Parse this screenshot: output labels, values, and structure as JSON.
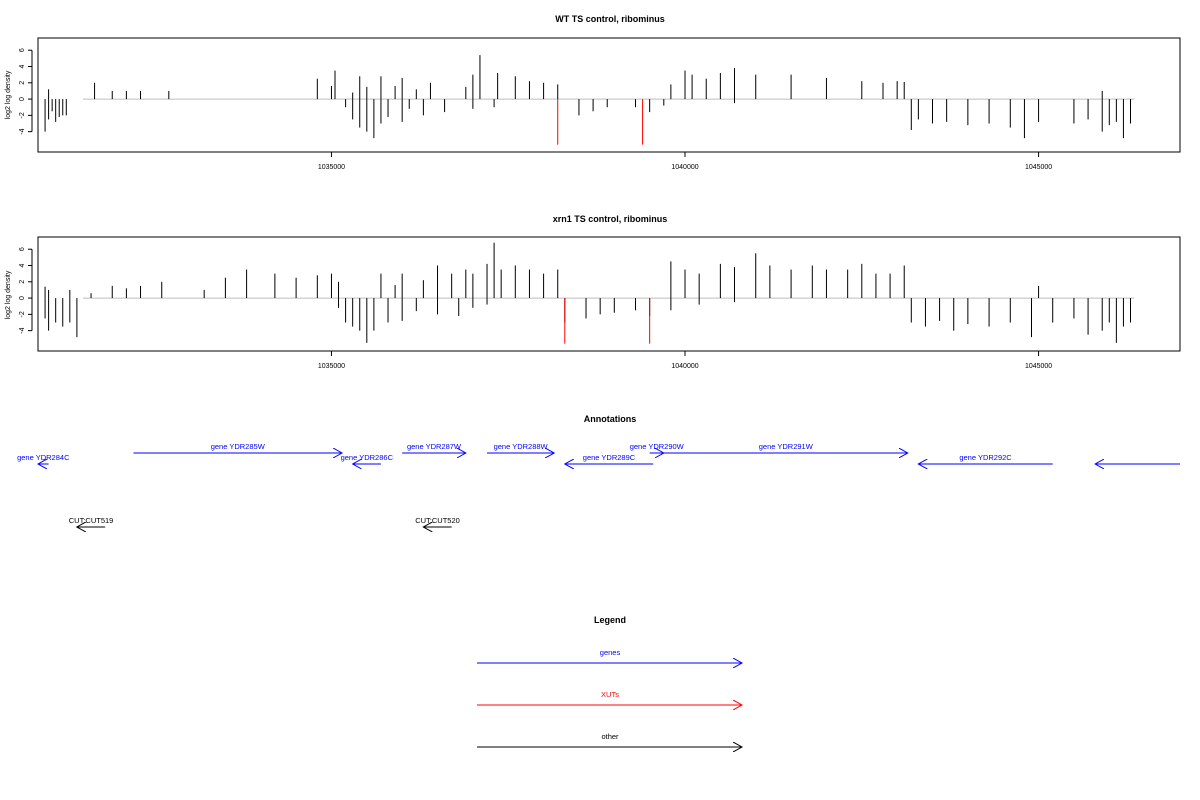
{
  "colors": {
    "gene": "#0000ff",
    "xut": "#ff0000",
    "other": "#000000",
    "bar": "#000000",
    "baseline": "#bebebe"
  },
  "chart_data": [
    {
      "type": "bar",
      "title": "WT TS control, ribominus",
      "ylabel": "log2 log density",
      "xlim": [
        1030850,
        1047000
      ],
      "ylim": [
        -6.5,
        7.5
      ],
      "xticks": [
        "1035000",
        "1040000",
        "1045000"
      ],
      "yticks": [
        "6",
        "4",
        "2",
        "0",
        "-2",
        "-4"
      ],
      "grid": false,
      "series": [
        {
          "strand": "plus",
          "x": [
            1031000,
            1031650,
            1031900,
            1032100,
            1032300,
            1032700,
            1034800,
            1035000,
            1035050,
            1035300,
            1035400,
            1035500,
            1035700,
            1035900,
            1036000,
            1036200,
            1036400,
            1036900,
            1037000,
            1037100,
            1037350,
            1037600,
            1037800,
            1038000,
            1038200,
            1039800,
            1040000,
            1040100,
            1040300,
            1040500,
            1040700,
            1041000,
            1041500,
            1042000,
            1042500,
            1042800,
            1043000,
            1043100,
            1045900
          ],
          "values": [
            1.2,
            2.0,
            1.0,
            1.0,
            1.0,
            1.0,
            2.5,
            1.6,
            3.5,
            0.8,
            2.8,
            1.5,
            2.8,
            1.6,
            2.6,
            1.2,
            2.0,
            1.5,
            3.0,
            5.4,
            3.2,
            2.8,
            2.2,
            2.0,
            1.8,
            1.8,
            3.5,
            3.0,
            2.5,
            3.2,
            3.8,
            3.0,
            3.0,
            2.6,
            2.2,
            2.0,
            2.2,
            2.1,
            1.0
          ]
        },
        {
          "strand": "minus",
          "x": [
            1030950,
            1031000,
            1031050,
            1031100,
            1031150,
            1031200,
            1031250,
            1035200,
            1035300,
            1035400,
            1035500,
            1035600,
            1035700,
            1035800,
            1036000,
            1036100,
            1036300,
            1036600,
            1037000,
            1037300,
            1038500,
            1038700,
            1038900,
            1039300,
            1039500,
            1039700,
            1040700,
            1043200,
            1043300,
            1043500,
            1043700,
            1044000,
            1044300,
            1044600,
            1044800,
            1045000,
            1045500,
            1045700,
            1045900,
            1046000,
            1046100,
            1046200,
            1046300
          ],
          "values": [
            -4.0,
            -2.5,
            -1.5,
            -2.8,
            -2.2,
            -2.0,
            -2.0,
            -1.0,
            -2.5,
            -3.5,
            -4.0,
            -4.8,
            -3.0,
            -2.2,
            -2.8,
            -1.2,
            -2.0,
            -1.6,
            -1.2,
            -1.0,
            -2.0,
            -1.5,
            -1.0,
            -1.0,
            -1.6,
            -0.8,
            -0.5,
            -3.8,
            -2.5,
            -3.0,
            -2.8,
            -3.2,
            -3.0,
            -3.5,
            -4.8,
            -2.8,
            -3.0,
            -2.5,
            -4.0,
            -3.2,
            -2.8,
            -4.8,
            -3.0
          ]
        },
        {
          "name": "XUTs",
          "strand": "minus",
          "x": [
            1038200,
            1039400
          ],
          "values": [
            -5.6,
            -5.6
          ]
        }
      ]
    },
    {
      "type": "bar",
      "title": "xrn1 TS control, ribominus",
      "ylabel": "log2 log density",
      "xlim": [
        1030850,
        1047000
      ],
      "ylim": [
        -6.5,
        7.5
      ],
      "xticks": [
        "1035000",
        "1040000",
        "1045000"
      ],
      "yticks": [
        "6",
        "4",
        "2",
        "0",
        "-2",
        "-4"
      ],
      "grid": false,
      "series": [
        {
          "strand": "plus",
          "x": [
            1030950,
            1031000,
            1031300,
            1031600,
            1031900,
            1032100,
            1032300,
            1032600,
            1033200,
            1033500,
            1033800,
            1034200,
            1034500,
            1034800,
            1035000,
            1035100,
            1035700,
            1035900,
            1036000,
            1036300,
            1036500,
            1036700,
            1036900,
            1037000,
            1037200,
            1037300,
            1037400,
            1037600,
            1037800,
            1038000,
            1038200,
            1039800,
            1040000,
            1040200,
            1040500,
            1040700,
            1041000,
            1041200,
            1041500,
            1041800,
            1042000,
            1042300,
            1042500,
            1042700,
            1042900,
            1043100,
            1045000
          ],
          "values": [
            1.4,
            1.0,
            1.0,
            0.6,
            1.5,
            1.2,
            1.5,
            2.0,
            1.0,
            2.5,
            3.5,
            3.0,
            2.5,
            2.8,
            3.0,
            2.0,
            3.0,
            1.6,
            3.0,
            2.2,
            4.0,
            3.0,
            3.5,
            3.0,
            4.2,
            6.8,
            3.5,
            4.0,
            3.5,
            3.0,
            3.5,
            4.5,
            3.5,
            3.0,
            4.2,
            3.8,
            5.5,
            4.0,
            3.5,
            4.0,
            3.5,
            3.5,
            4.2,
            3.0,
            3.0,
            4.0,
            1.5
          ]
        },
        {
          "strand": "minus",
          "x": [
            1030950,
            1031000,
            1031100,
            1031200,
            1031300,
            1031400,
            1035100,
            1035200,
            1035300,
            1035400,
            1035500,
            1035600,
            1035800,
            1036000,
            1036200,
            1036500,
            1036800,
            1037000,
            1037200,
            1038300,
            1038600,
            1038800,
            1039000,
            1039300,
            1039500,
            1039800,
            1040200,
            1040700,
            1043200,
            1043400,
            1043600,
            1043800,
            1044000,
            1044300,
            1044600,
            1044900,
            1045200,
            1045500,
            1045700,
            1045900,
            1046000,
            1046100,
            1046200,
            1046300
          ],
          "values": [
            -2.5,
            -4.0,
            -3.0,
            -3.5,
            -3.0,
            -4.8,
            -1.2,
            -3.0,
            -3.5,
            -4.0,
            -5.5,
            -4.0,
            -3.0,
            -2.8,
            -1.6,
            -2.0,
            -2.2,
            -1.2,
            -0.8,
            -3.0,
            -2.5,
            -2.0,
            -1.8,
            -1.5,
            -2.2,
            -1.5,
            -0.8,
            -0.5,
            -3.0,
            -3.5,
            -2.8,
            -4.0,
            -3.2,
            -3.5,
            -3.0,
            -4.8,
            -3.0,
            -2.5,
            -4.5,
            -4.0,
            -3.0,
            -5.5,
            -3.5,
            -3.0
          ]
        },
        {
          "name": "XUTs",
          "strand": "minus",
          "x": [
            1038300,
            1039500
          ],
          "values": [
            -5.6,
            -5.6
          ]
        }
      ]
    }
  ],
  "annotations": {
    "title": "Annotations",
    "features": [
      {
        "label": "gene YDR284C",
        "kind": "gene",
        "strand": "-",
        "start": 1030850,
        "end": 1031000,
        "row": 1
      },
      {
        "label": "gene YDR285W",
        "kind": "gene",
        "strand": "+",
        "start": 1032200,
        "end": 1035150,
        "row": 0
      },
      {
        "label": "gene YDR286C",
        "kind": "gene",
        "strand": "-",
        "start": 1035300,
        "end": 1035700,
        "row": 1
      },
      {
        "label": "gene YDR287W",
        "kind": "gene",
        "strand": "+",
        "start": 1036000,
        "end": 1036900,
        "row": 0
      },
      {
        "label": "gene YDR288W",
        "kind": "gene",
        "strand": "+",
        "start": 1037200,
        "end": 1038150,
        "row": 0
      },
      {
        "label": "gene YDR289C",
        "kind": "gene",
        "strand": "-",
        "start": 1038300,
        "end": 1039550,
        "row": 1
      },
      {
        "label": "gene YDR290W",
        "kind": "gene",
        "strand": "+",
        "start": 1039500,
        "end": 1039700,
        "row": 0
      },
      {
        "label": "gene YDR291W",
        "kind": "gene",
        "strand": "+",
        "start": 1039700,
        "end": 1043150,
        "row": 0
      },
      {
        "label": "gene YDR292C",
        "kind": "gene",
        "strand": "-",
        "start": 1043300,
        "end": 1045200,
        "row": 1
      },
      {
        "label": "",
        "kind": "gene",
        "strand": "-",
        "start": 1045800,
        "end": 1047000,
        "row": 1
      },
      {
        "label": "CUT:CUT519",
        "kind": "other",
        "strand": "-",
        "start": 1031400,
        "end": 1031800,
        "row": 2
      },
      {
        "label": "CUT:CUT520",
        "kind": "other",
        "strand": "-",
        "start": 1036300,
        "end": 1036700,
        "row": 2
      }
    ]
  },
  "legend": {
    "title": "Legend",
    "items": [
      {
        "label": "genes",
        "kind": "gene"
      },
      {
        "label": "XUTs",
        "kind": "xut"
      },
      {
        "label": "other",
        "kind": "other"
      }
    ]
  }
}
